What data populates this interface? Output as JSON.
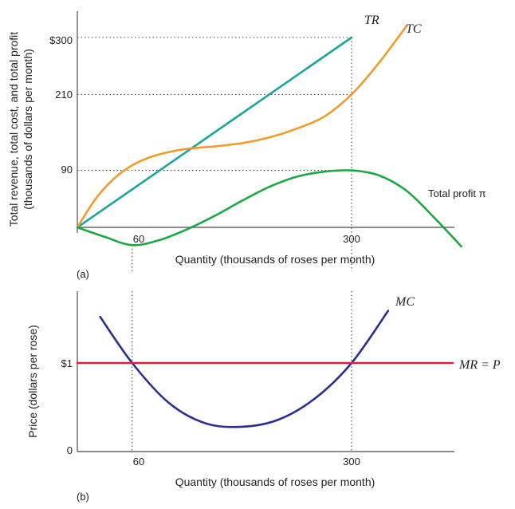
{
  "chart_data": [
    {
      "type": "line",
      "panel_label": "(a)",
      "xlabel": "Quantity (thousands of roses per month)",
      "ylabel_line1": "Total revenue, total cost, and total profit",
      "ylabel_line2": "(thousands of dollars per month)",
      "x_ticks": [
        "60",
        "300"
      ],
      "y_ticks": [
        "$300",
        "210",
        "90"
      ],
      "series": [
        {
          "name": "TR",
          "color": "#1aa69a",
          "points": [
            [
              0,
              0
            ],
            [
              300,
              300
            ]
          ]
        },
        {
          "name": "TC",
          "color": "#f39a28",
          "points": [
            [
              0,
              0
            ],
            [
              20,
              45
            ],
            [
              40,
              77
            ],
            [
              60,
              98
            ],
            [
              80,
              111
            ],
            [
              100,
              119
            ],
            [
              120,
              124
            ],
            [
              150,
              128
            ],
            [
              180,
              133
            ],
            [
              210,
              142
            ],
            [
              240,
              156
            ],
            [
              270,
              175
            ],
            [
              300,
              210
            ],
            [
              330,
              260
            ],
            [
              360,
              318
            ]
          ]
        },
        {
          "name": "Total profit π",
          "color": "#1ea845",
          "points": [
            [
              0,
              0
            ],
            [
              30,
              -15
            ],
            [
              60,
              -28
            ],
            [
              90,
              -20
            ],
            [
              120,
              -3
            ],
            [
              150,
              18
            ],
            [
              180,
              42
            ],
            [
              210,
              64
            ],
            [
              240,
              80
            ],
            [
              270,
              88
            ],
            [
              300,
              90
            ],
            [
              330,
              82
            ],
            [
              360,
              58
            ],
            [
              390,
              16
            ],
            [
              420,
              -30
            ]
          ]
        }
      ],
      "guides": {
        "horizontal": [
          300,
          210,
          90
        ],
        "vertical": [
          60,
          300
        ]
      }
    },
    {
      "type": "line",
      "panel_label": "(b)",
      "xlabel": "Quantity (thousands of roses per month)",
      "ylabel": "Price (dollars per rose)",
      "x_ticks": [
        "60",
        "300"
      ],
      "y_ticks": [
        "$1",
        "0"
      ],
      "series": [
        {
          "name": "MC",
          "color": "#2b2f8f",
          "points": [
            [
              25,
              1.52
            ],
            [
              60,
              1.0
            ],
            [
              100,
              0.55
            ],
            [
              140,
              0.32
            ],
            [
              180,
              0.28
            ],
            [
              220,
              0.36
            ],
            [
              260,
              0.6
            ],
            [
              300,
              1.0
            ],
            [
              340,
              1.59
            ]
          ]
        },
        {
          "name": "MR = P",
          "color": "#e02030",
          "points": [
            [
              0,
              1.0
            ],
            [
              420,
              1.0
            ]
          ]
        }
      ],
      "guides": {
        "vertical": [
          60,
          300
        ]
      }
    }
  ]
}
